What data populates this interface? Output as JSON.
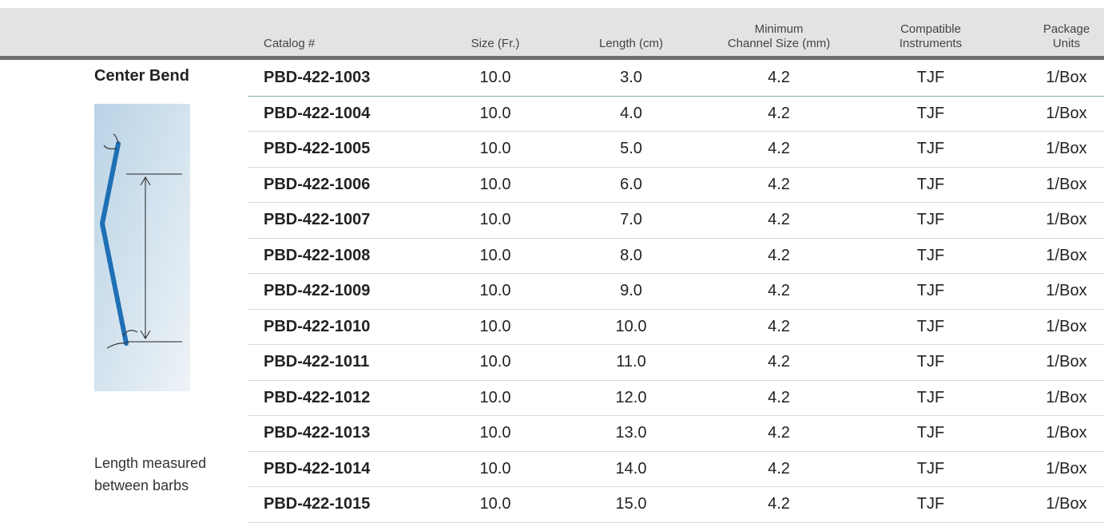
{
  "section": {
    "title": "Center Bend",
    "caption": "Length measured between barbs"
  },
  "table": {
    "columns": [
      [
        "Catalog #"
      ],
      [
        "Size (Fr.)"
      ],
      [
        "Length (cm)"
      ],
      [
        "Minimum",
        "Channel Size (mm)"
      ],
      [
        "Compatible",
        "Instruments"
      ],
      [
        "Package",
        "Units"
      ]
    ],
    "rows": [
      [
        "PBD-422-1003",
        "10.0",
        "3.0",
        "4.2",
        "TJF",
        "1/Box"
      ],
      [
        "PBD-422-1004",
        "10.0",
        "4.0",
        "4.2",
        "TJF",
        "1/Box"
      ],
      [
        "PBD-422-1005",
        "10.0",
        "5.0",
        "4.2",
        "TJF",
        "1/Box"
      ],
      [
        "PBD-422-1006",
        "10.0",
        "6.0",
        "4.2",
        "TJF",
        "1/Box"
      ],
      [
        "PBD-422-1007",
        "10.0",
        "7.0",
        "4.2",
        "TJF",
        "1/Box"
      ],
      [
        "PBD-422-1008",
        "10.0",
        "8.0",
        "4.2",
        "TJF",
        "1/Box"
      ],
      [
        "PBD-422-1009",
        "10.0",
        "9.0",
        "4.2",
        "TJF",
        "1/Box"
      ],
      [
        "PBD-422-1010",
        "10.0",
        "10.0",
        "4.2",
        "TJF",
        "1/Box"
      ],
      [
        "PBD-422-1011",
        "10.0",
        "11.0",
        "4.2",
        "TJF",
        "1/Box"
      ],
      [
        "PBD-422-1012",
        "10.0",
        "12.0",
        "4.2",
        "TJF",
        "1/Box"
      ],
      [
        "PBD-422-1013",
        "10.0",
        "13.0",
        "4.2",
        "TJF",
        "1/Box"
      ],
      [
        "PBD-422-1014",
        "10.0",
        "14.0",
        "4.2",
        "TJF",
        "1/Box"
      ],
      [
        "PBD-422-1015",
        "10.0",
        "15.0",
        "4.2",
        "TJF",
        "1/Box"
      ]
    ]
  }
}
